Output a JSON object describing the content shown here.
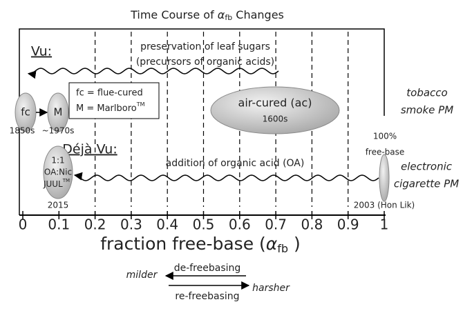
{
  "title": {
    "text": "Time Course of ",
    "symbol": "α",
    "subscript": "fb",
    "after": " Changes"
  },
  "axis": {
    "ticks": [
      0,
      0.1,
      0.2,
      0.3,
      0.4,
      0.5,
      0.6,
      0.7,
      0.8,
      0.9,
      1
    ],
    "label": {
      "text": "fraction free-base (",
      "symbol": "α",
      "subscript": "fb",
      "after": " )"
    }
  },
  "vu": {
    "heading": "Vu:",
    "line1": "preservation of leaf sugars",
    "line2": "(precursors of organic acids)",
    "fc": "fc",
    "m": "M",
    "fc_year": "1850s",
    "m_year": "~1970s",
    "legend1": "fc = flue-cured",
    "legend2": "M = Marlboro",
    "legend2_sup": "TM",
    "air_cured": "air-cured (ac)",
    "air_year": "1600s"
  },
  "tobacco": [
    "tobacco",
    "smoke PM"
  ],
  "free_base": [
    "100%",
    "free-base"
  ],
  "deja": {
    "heading": "Déjà Vu:",
    "line": "addition of organic acid (OA)",
    "juul1": "1:1",
    "juul2": "OA:Nic",
    "juul3": "JUUL",
    "juul3_sup": "TM",
    "juul_year": "2015",
    "ecig_year": "2003 (Hon Lik)"
  },
  "ecig": [
    "electronic",
    "cigarette PM"
  ],
  "direction": {
    "milder": "milder",
    "harsher": "harsher",
    "de": "de-freebasing",
    "re": "re-freebasing"
  }
}
